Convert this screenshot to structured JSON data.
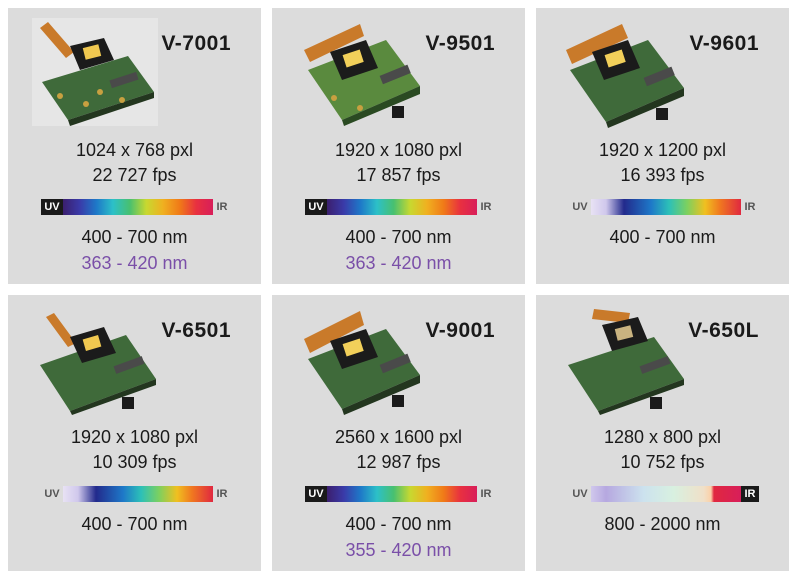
{
  "products": [
    {
      "model": "V-7001",
      "resolution": "1024 x 768 pxl",
      "fps": "22 727 fps",
      "range_visible": "400 - 700 nm",
      "range_uv": "363 - 420 nm",
      "spectrum": {
        "uv": "UV",
        "ir": "IR",
        "uv_dark": true,
        "ir_dark": false,
        "style": "vis"
      }
    },
    {
      "model": "V-9501",
      "resolution": "1920 x 1080 pxl",
      "fps": "17 857 fps",
      "range_visible": "400 - 700 nm",
      "range_uv": "363 - 420 nm",
      "spectrum": {
        "uv": "UV",
        "ir": "IR",
        "uv_dark": true,
        "ir_dark": false,
        "style": "vis"
      }
    },
    {
      "model": "V-9601",
      "resolution": "1920 x 1200 pxl",
      "fps": "16 393 fps",
      "range_visible": "400 - 700 nm",
      "range_uv": "",
      "spectrum": {
        "uv": "UV",
        "ir": "IR",
        "uv_dark": false,
        "ir_dark": false,
        "style": "vis2"
      }
    },
    {
      "model": "V-6501",
      "resolution": "1920 x 1080 pxl",
      "fps": "10 309 fps",
      "range_visible": "400 - 700 nm",
      "range_uv": "",
      "spectrum": {
        "uv": "UV",
        "ir": "IR",
        "uv_dark": false,
        "ir_dark": false,
        "style": "vis2"
      }
    },
    {
      "model": "V-9001",
      "resolution": "2560 x 1600 pxl",
      "fps": "12 987 fps",
      "range_visible": "400 - 700 nm",
      "range_uv": "355 - 420 nm",
      "spectrum": {
        "uv": "UV",
        "ir": "IR",
        "uv_dark": true,
        "ir_dark": false,
        "style": "vis"
      }
    },
    {
      "model": "V-650L",
      "resolution": "1280 x 800 pxl",
      "fps": "10 752 fps",
      "range_visible": "800 - 2000 nm",
      "range_uv": "",
      "spectrum": {
        "uv": "UV",
        "ir": "IR",
        "uv_dark": false,
        "ir_dark": true,
        "style": "nir"
      }
    }
  ],
  "colors": {
    "card_bg": "#dcdcdc",
    "uv_range_text": "#7a4fa8",
    "text": "#1a1a1a"
  },
  "icons": [
    "dmd-board-image"
  ]
}
